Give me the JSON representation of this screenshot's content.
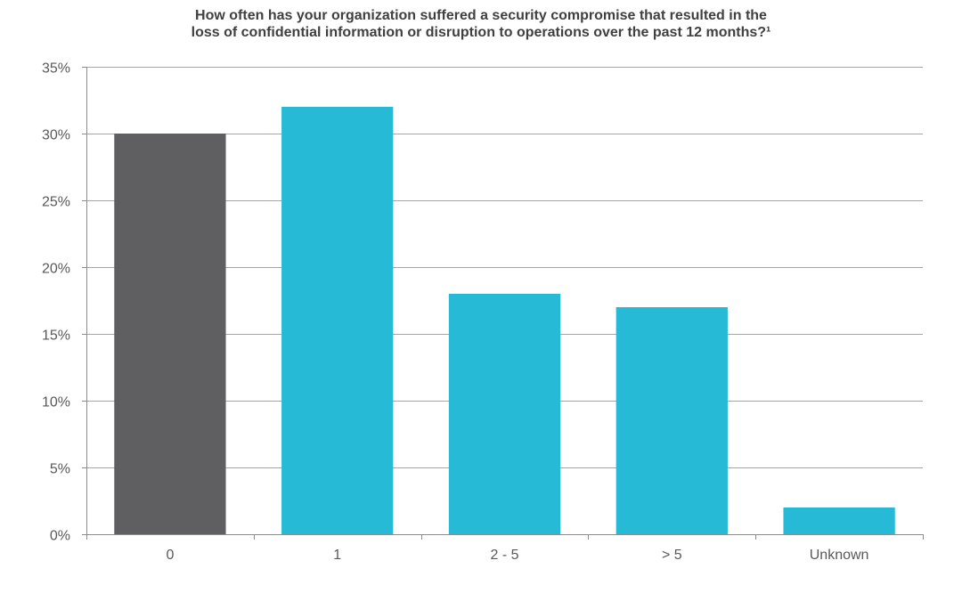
{
  "chart_data": {
    "type": "bar",
    "title_lines": [
      "How often has your organization suffered a security compromise that resulted in the",
      "loss of confidential information or disruption to operations over the past 12 months?¹"
    ],
    "categories": [
      "0",
      "1",
      "2 - 5",
      "> 5",
      "Unknown"
    ],
    "values": [
      30,
      32,
      18,
      17,
      2
    ],
    "bar_colors": [
      "#5f5f62",
      "#26bad6",
      "#26bad6",
      "#26bad6",
      "#26bad6"
    ],
    "ylim": [
      0,
      35
    ],
    "y_ticks": [
      0,
      5,
      10,
      15,
      20,
      25,
      30,
      35
    ],
    "y_tick_format": "percent",
    "grid": true,
    "gridline_color": "#a6a6a6",
    "axis_color": "#8c8c8c",
    "xlabel": "",
    "ylabel": ""
  }
}
